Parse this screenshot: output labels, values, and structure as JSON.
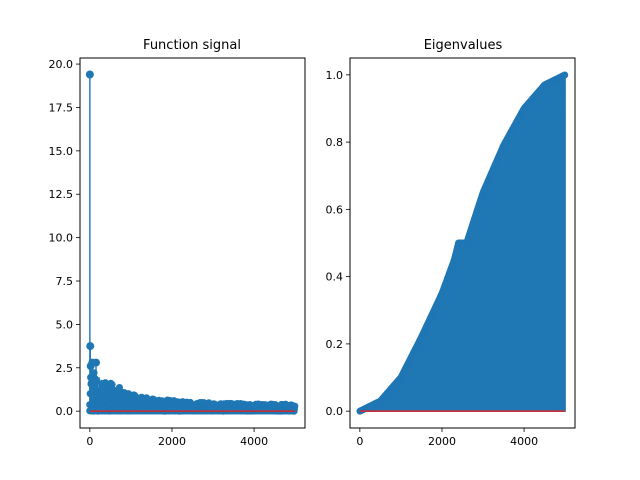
{
  "chart_data": [
    {
      "type": "stem",
      "title": "Function signal",
      "xlabel": "",
      "ylabel": "",
      "xlim": [
        -240,
        5240
      ],
      "ylim": [
        -0.97,
        20.35
      ],
      "xticks": [
        0,
        2000,
        4000
      ],
      "xtick_labels": [
        "0",
        "2000",
        "4000"
      ],
      "yticks": [
        0.0,
        2.5,
        5.0,
        7.5,
        10.0,
        12.5,
        15.0,
        17.5,
        20.0
      ],
      "ytick_labels": [
        "0.0",
        "2.5",
        "5.0",
        "7.5",
        "10.0",
        "12.5",
        "15.0",
        "17.5",
        "20.0"
      ],
      "grid": false,
      "n_points": 5000,
      "x_range": [
        0,
        4999
      ],
      "highlighted_points": [
        {
          "x": 0,
          "y": 19.4
        },
        {
          "x": 10,
          "y": 3.75
        },
        {
          "x": 20,
          "y": 2.6
        },
        {
          "x": 60,
          "y": 2.8
        },
        {
          "x": 150,
          "y": 2.8
        }
      ],
      "envelope": [
        {
          "x": 0,
          "y": 2.5
        },
        {
          "x": 100,
          "y": 2.3
        },
        {
          "x": 300,
          "y": 1.9
        },
        {
          "x": 600,
          "y": 1.55
        },
        {
          "x": 1000,
          "y": 1.0
        },
        {
          "x": 1500,
          "y": 0.75
        },
        {
          "x": 2000,
          "y": 0.62
        },
        {
          "x": 2500,
          "y": 0.52
        },
        {
          "x": 3000,
          "y": 0.48
        },
        {
          "x": 3500,
          "y": 0.45
        },
        {
          "x": 4000,
          "y": 0.43
        },
        {
          "x": 4500,
          "y": 0.41
        },
        {
          "x": 4999,
          "y": 0.38
        }
      ],
      "baseline": 0,
      "colors": {
        "stem": "#1f77b4",
        "baseline": "#d62728"
      }
    },
    {
      "type": "stem",
      "title": "Eigenvalues",
      "xlabel": "",
      "ylabel": "",
      "xlim": [
        -240,
        5240
      ],
      "ylim": [
        -0.05,
        1.05
      ],
      "xticks": [
        0,
        2000,
        4000
      ],
      "xtick_labels": [
        "0",
        "2000",
        "4000"
      ],
      "yticks": [
        0.0,
        0.2,
        0.4,
        0.6,
        0.8,
        1.0
      ],
      "ytick_labels": [
        "0.0",
        "0.2",
        "0.4",
        "0.6",
        "0.8",
        "1.0"
      ],
      "grid": false,
      "n_points": 5000,
      "x_range": [
        0,
        4999
      ],
      "curve": [
        {
          "x": 0,
          "y": 0.0
        },
        {
          "x": 500,
          "y": 0.03
        },
        {
          "x": 1000,
          "y": 0.1
        },
        {
          "x": 1500,
          "y": 0.22
        },
        {
          "x": 2000,
          "y": 0.35
        },
        {
          "x": 2300,
          "y": 0.45
        },
        {
          "x": 2400,
          "y": 0.5
        },
        {
          "x": 2600,
          "y": 0.5
        },
        {
          "x": 3000,
          "y": 0.65
        },
        {
          "x": 3500,
          "y": 0.79
        },
        {
          "x": 4000,
          "y": 0.9
        },
        {
          "x": 4500,
          "y": 0.97
        },
        {
          "x": 4999,
          "y": 1.0
        }
      ],
      "baseline": 0,
      "colors": {
        "stem": "#1f77b4",
        "baseline": "#d62728"
      }
    }
  ]
}
